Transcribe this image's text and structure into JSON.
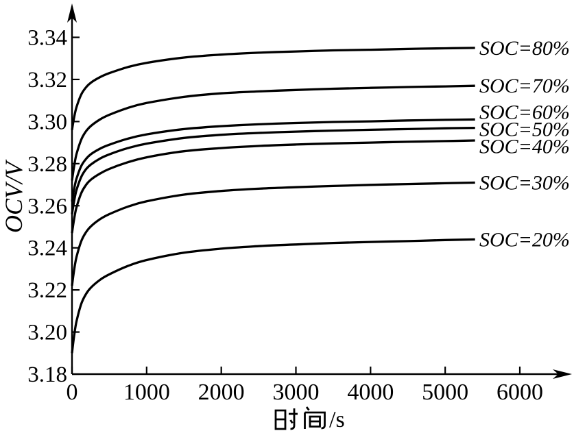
{
  "figure": {
    "background": "#ffffff",
    "ink_color": "#000000"
  },
  "chart_data": {
    "type": "line",
    "title": "",
    "xlabel": "时间/s",
    "ylabel": "OCV/V",
    "xlim": [
      0,
      6600
    ],
    "ylim": [
      3.18,
      3.34
    ],
    "x_ticks": [
      0,
      1000,
      2000,
      3000,
      4000,
      5000,
      6000
    ],
    "x_tick_labels": [
      "0",
      "1000",
      "2000",
      "3000",
      "4000",
      "5000",
      "6000"
    ],
    "y_tick_labels": [
      "3.18",
      "3.20",
      "3.22",
      "3.24",
      "3.26",
      "3.28",
      "3.30",
      "3.32",
      "3.34"
    ],
    "grid": false,
    "legend_position": "labels-at-line-ends",
    "line_color": "#000000",
    "x": [
      0,
      30,
      60,
      120,
      180,
      250,
      375,
      500,
      750,
      1000,
      1500,
      2000,
      2500,
      3000,
      3500,
      4000,
      4500,
      5000,
      5400
    ],
    "series": [
      {
        "name": "SOC=80%",
        "values": [
          3.296,
          3.3023,
          3.3068,
          3.3126,
          3.3159,
          3.3184,
          3.3211,
          3.323,
          3.3259,
          3.3279,
          3.3304,
          3.3318,
          3.3327,
          3.3333,
          3.3338,
          3.3341,
          3.3345,
          3.3348,
          3.335
        ]
      },
      {
        "name": "SOC=70%",
        "values": [
          3.272,
          3.2792,
          3.2845,
          3.2911,
          3.295,
          3.2978,
          3.301,
          3.3032,
          3.3065,
          3.3088,
          3.3117,
          3.3134,
          3.3143,
          3.315,
          3.3156,
          3.316,
          3.3164,
          3.3167,
          3.317
        ]
      },
      {
        "name": "SOC=60%",
        "values": [
          3.262,
          3.2683,
          3.2728,
          3.2786,
          3.2819,
          3.2844,
          3.2871,
          3.289,
          3.2919,
          3.2939,
          3.2964,
          3.2978,
          3.2987,
          3.2993,
          3.2998,
          3.3001,
          3.3005,
          3.3008,
          3.301
        ]
      },
      {
        "name": "SOC=50%",
        "values": [
          3.256,
          3.2626,
          3.2674,
          3.2734,
          3.277,
          3.2795,
          3.2824,
          3.2844,
          3.2874,
          3.2895,
          3.2922,
          3.2937,
          3.2946,
          3.2952,
          3.2957,
          3.2961,
          3.2964,
          3.2968,
          3.297
        ]
      },
      {
        "name": "SOC=40%",
        "values": [
          3.247,
          3.2541,
          3.2592,
          3.2657,
          3.2695,
          3.2723,
          3.2753,
          3.2775,
          3.2807,
          3.283,
          3.2859,
          3.2874,
          3.2884,
          3.2891,
          3.2896,
          3.29,
          3.2904,
          3.2907,
          3.291
        ]
      },
      {
        "name": "SOC=30%",
        "values": [
          3.222,
          3.2299,
          3.2356,
          3.2428,
          3.247,
          3.2501,
          3.2536,
          3.256,
          3.2596,
          3.2621,
          3.2653,
          3.267,
          3.2681,
          3.2688,
          3.2694,
          3.2699,
          3.2703,
          3.2707,
          3.271
        ]
      },
      {
        "name": "SOC=20%",
        "values": [
          3.19,
          3.1987,
          3.205,
          3.213,
          3.2176,
          3.221,
          3.2248,
          3.2274,
          3.2314,
          3.2342,
          3.2377,
          3.2396,
          3.2408,
          3.2416,
          3.2423,
          3.2428,
          3.2432,
          3.2437,
          3.244
        ]
      }
    ]
  }
}
